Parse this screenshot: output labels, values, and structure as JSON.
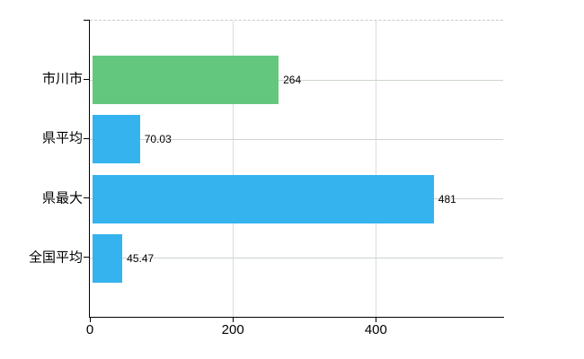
{
  "chart_data": {
    "type": "bar",
    "orientation": "horizontal",
    "title": "",
    "xlabel": "",
    "ylabel": "",
    "categories": [
      "市川市",
      "県平均",
      "県最大",
      "全国平均"
    ],
    "values": [
      264,
      70.03,
      481,
      45.47
    ],
    "value_labels": [
      "264",
      "70.03",
      "481",
      "45.47"
    ],
    "bar_colors": [
      "#63c87e",
      "#35b3ee",
      "#35b3ee",
      "#35b3ee"
    ],
    "xlim": [
      0,
      578
    ],
    "xticks": [
      0,
      200,
      400
    ],
    "xtick_labels": [
      "0",
      "200",
      "400"
    ],
    "grid": true,
    "legend": false,
    "colors": {
      "green_bar": "#63c87e",
      "blue_bar": "#35b3ee",
      "h_gridline": "#ccd5cb",
      "v_gridline": "#dcdcdc",
      "top_border": "#c9c9c9",
      "axis": "#000000",
      "label_text": "#000000"
    }
  }
}
